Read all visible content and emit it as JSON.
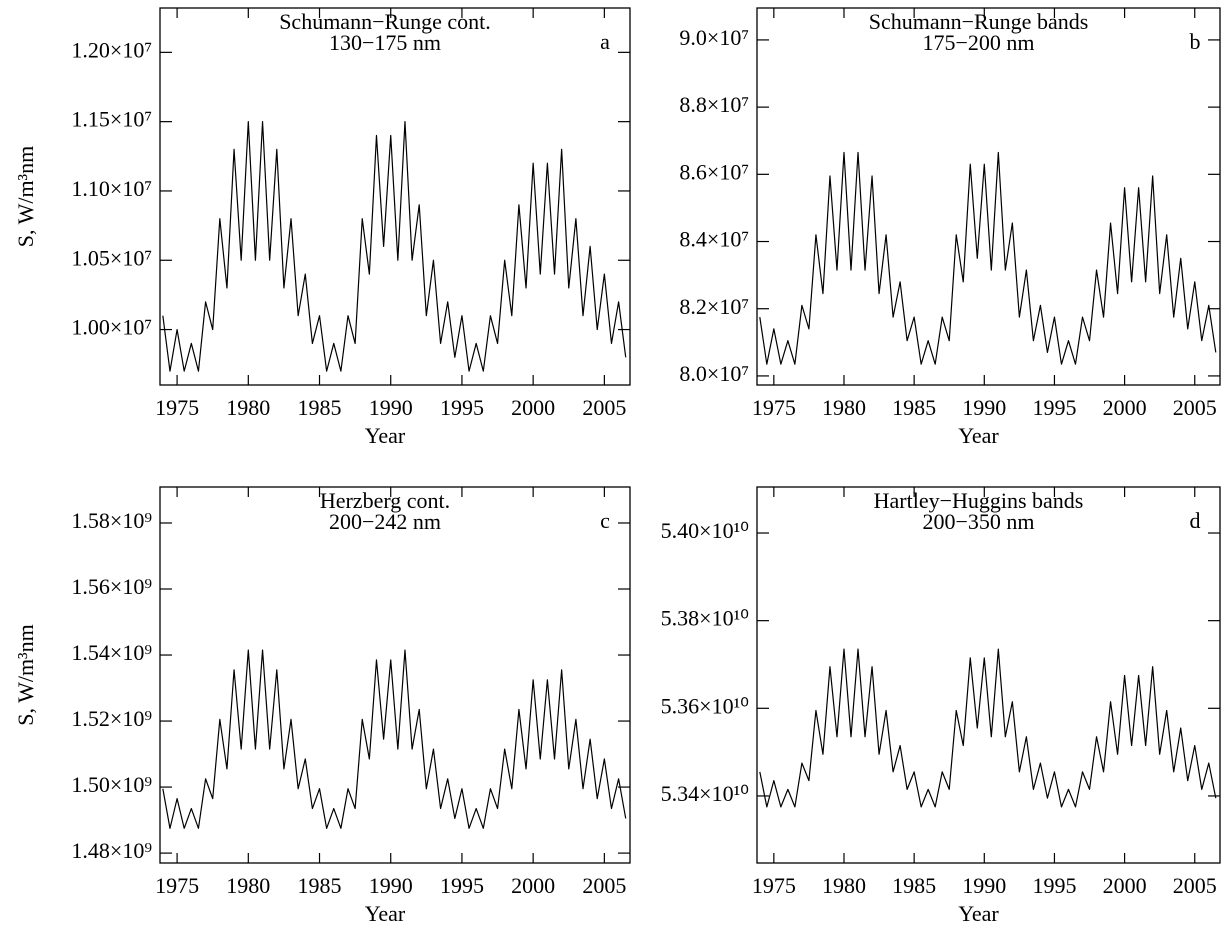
{
  "chart_data": [
    {
      "type": "line",
      "title": "Schumann−Runge cont.",
      "subtitle": "130−175 nm",
      "panel_label": "a",
      "xlabel": "Year",
      "ylabel": "S, W/m³nm",
      "color": "#000000",
      "xlim": [
        1973.8,
        2006.8
      ],
      "xticks": [
        1975,
        1980,
        1985,
        1990,
        1995,
        2000,
        2005
      ],
      "ylim": [
        9600000,
        12320000
      ],
      "yticks": [
        {
          "value": 10000000,
          "label": "1.00×10⁷"
        },
        {
          "value": 10500000,
          "label": "1.05×10⁷"
        },
        {
          "value": 11000000,
          "label": "1.10×10⁷"
        },
        {
          "value": 11500000,
          "label": "1.15×10⁷"
        },
        {
          "value": 12000000,
          "label": "1.20×10⁷"
        }
      ],
      "x": [
        1974,
        1974.5,
        1975,
        1975.5,
        1976,
        1976.5,
        1977,
        1977.5,
        1978,
        1978.5,
        1979,
        1979.5,
        1980,
        1980.5,
        1981,
        1981.5,
        1982,
        1982.5,
        1983,
        1983.5,
        1984,
        1984.5,
        1985,
        1985.5,
        1986,
        1986.5,
        1987,
        1987.5,
        1988,
        1988.5,
        1989,
        1989.5,
        1990,
        1990.5,
        1991,
        1991.5,
        1992,
        1992.5,
        1993,
        1993.5,
        1994,
        1994.5,
        1995,
        1995.5,
        1996,
        1996.5,
        1997,
        1997.5,
        1998,
        1998.5,
        1999,
        1999.5,
        2000,
        2000.5,
        2001,
        2001.5,
        2002,
        2002.5,
        2003,
        2003.5,
        2004,
        2004.5,
        2005,
        2005.5,
        2006,
        2006.5
      ],
      "values": [
        10100000,
        9700000,
        10000000,
        9700000,
        9900000,
        9700000,
        10200000,
        10000000,
        10800000,
        10300000,
        11300000,
        10500000,
        11500000,
        10500000,
        11500000,
        10500000,
        11300000,
        10300000,
        10800000,
        10100000,
        10400000,
        9900000,
        10100000,
        9700000,
        9900000,
        9700000,
        10100000,
        9900000,
        10800000,
        10400000,
        11400000,
        10600000,
        11400000,
        10500000,
        11500000,
        10500000,
        10900000,
        10100000,
        10500000,
        9900000,
        10200000,
        9800000,
        10100000,
        9700000,
        9900000,
        9700000,
        10100000,
        9900000,
        10500000,
        10100000,
        10900000,
        10300000,
        11200000,
        10400000,
        11200000,
        10400000,
        11300000,
        10300000,
        10800000,
        10100000,
        10600000,
        10000000,
        10400000,
        9900000,
        10200000,
        9800000
      ]
    },
    {
      "type": "line",
      "title": "Schumann−Runge bands",
      "subtitle": "175−200 nm",
      "panel_label": "b",
      "xlabel": "Year",
      "color": "#000000",
      "xlim": [
        1973.8,
        2006.8
      ],
      "xticks": [
        1975,
        1980,
        1985,
        1990,
        1995,
        2000,
        2005
      ],
      "ylim": [
        79730000,
        90950000
      ],
      "yticks": [
        {
          "value": 80000000,
          "label": "8.0×10⁷"
        },
        {
          "value": 82000000,
          "label": "8.2×10⁷"
        },
        {
          "value": 84000000,
          "label": "8.4×10⁷"
        },
        {
          "value": 86000000,
          "label": "8.6×10⁷"
        },
        {
          "value": 88000000,
          "label": "8.8×10⁷"
        },
        {
          "value": 90000000,
          "label": "9.0×10⁷"
        }
      ],
      "x": [
        1974,
        1974.5,
        1975,
        1975.5,
        1976,
        1976.5,
        1977,
        1977.5,
        1978,
        1978.5,
        1979,
        1979.5,
        1980,
        1980.5,
        1981,
        1981.5,
        1982,
        1982.5,
        1983,
        1983.5,
        1984,
        1984.5,
        1985,
        1985.5,
        1986,
        1986.5,
        1987,
        1987.5,
        1988,
        1988.5,
        1989,
        1989.5,
        1990,
        1990.5,
        1991,
        1991.5,
        1992,
        1992.5,
        1993,
        1993.5,
        1994,
        1994.5,
        1995,
        1995.5,
        1996,
        1996.5,
        1997,
        1997.5,
        1998,
        1998.5,
        1999,
        1999.5,
        2000,
        2000.5,
        2001,
        2001.5,
        2002,
        2002.5,
        2003,
        2003.5,
        2004,
        2004.5,
        2005,
        2005.5,
        2006,
        2006.5
      ],
      "values": [
        81750000,
        80350000,
        81400000,
        80350000,
        81050000,
        80350000,
        82100000,
        81400000,
        84200000,
        82450000,
        85950000,
        83150000,
        86650000,
        83150000,
        86650000,
        83150000,
        85950000,
        82450000,
        84200000,
        81750000,
        82800000,
        81050000,
        81750000,
        80350000,
        81050000,
        80350000,
        81750000,
        81050000,
        84200000,
        82800000,
        86300000,
        83500000,
        86300000,
        83150000,
        86650000,
        83150000,
        84550000,
        81750000,
        83150000,
        81050000,
        82100000,
        80700000,
        81750000,
        80350000,
        81050000,
        80350000,
        81750000,
        81050000,
        83150000,
        81750000,
        84550000,
        82450000,
        85600000,
        82800000,
        85600000,
        82800000,
        85950000,
        82450000,
        84200000,
        81750000,
        83500000,
        81400000,
        82800000,
        81050000,
        82100000,
        80700000
      ]
    },
    {
      "type": "line",
      "title": "Herzberg cont.",
      "subtitle": "200−242 nm",
      "panel_label": "c",
      "xlabel": "Year",
      "ylabel": "S, W/m³nm",
      "color": "#000000",
      "xlim": [
        1973.8,
        2006.8
      ],
      "xticks": [
        1975,
        1980,
        1985,
        1990,
        1995,
        2000,
        2005
      ],
      "ylim": [
        1477000000,
        1590900000
      ],
      "yticks": [
        {
          "value": 1480000000,
          "label": "1.48×10⁹"
        },
        {
          "value": 1500000000,
          "label": "1.50×10⁹"
        },
        {
          "value": 1520000000,
          "label": "1.52×10⁹"
        },
        {
          "value": 1540000000,
          "label": "1.54×10⁹"
        },
        {
          "value": 1560000000,
          "label": "1.56×10⁹"
        },
        {
          "value": 1580000000,
          "label": "1.58×10⁹"
        }
      ],
      "x": [
        1974,
        1974.5,
        1975,
        1975.5,
        1976,
        1976.5,
        1977,
        1977.5,
        1978,
        1978.5,
        1979,
        1979.5,
        1980,
        1980.5,
        1981,
        1981.5,
        1982,
        1982.5,
        1983,
        1983.5,
        1984,
        1984.5,
        1985,
        1985.5,
        1986,
        1986.5,
        1987,
        1987.5,
        1988,
        1988.5,
        1989,
        1989.5,
        1990,
        1990.5,
        1991,
        1991.5,
        1992,
        1992.5,
        1993,
        1993.5,
        1994,
        1994.5,
        1995,
        1995.5,
        1996,
        1996.5,
        1997,
        1997.5,
        1998,
        1998.5,
        1999,
        1999.5,
        2000,
        2000.5,
        2001,
        2001.5,
        2002,
        2002.5,
        2003,
        2003.5,
        2004,
        2004.5,
        2005,
        2005.5,
        2006,
        2006.5
      ],
      "values": [
        1499500000,
        1487500000,
        1496500000,
        1487500000,
        1493500000,
        1487500000,
        1502500000,
        1496500000,
        1520500000,
        1505500000,
        1535500000,
        1511500000,
        1541500000,
        1511500000,
        1541500000,
        1511500000,
        1535500000,
        1505500000,
        1520500000,
        1499500000,
        1508500000,
        1493500000,
        1499500000,
        1487500000,
        1493500000,
        1487500000,
        1499500000,
        1493500000,
        1520500000,
        1508500000,
        1538500000,
        1514500000,
        1538500000,
        1511500000,
        1541500000,
        1511500000,
        1523500000,
        1499500000,
        1511500000,
        1493500000,
        1502500000,
        1490500000,
        1499500000,
        1487500000,
        1493500000,
        1487500000,
        1499500000,
        1493500000,
        1511500000,
        1499500000,
        1523500000,
        1505500000,
        1532500000,
        1508500000,
        1532500000,
        1508500000,
        1535500000,
        1505500000,
        1520500000,
        1499500000,
        1514500000,
        1496500000,
        1508500000,
        1493500000,
        1502500000,
        1490500000
      ]
    },
    {
      "type": "line",
      "title": "Hartley−Huggins bands",
      "subtitle": "200−350 nm",
      "panel_label": "d",
      "xlabel": "Year",
      "color": "#000000",
      "xlim": [
        1973.8,
        2006.8
      ],
      "xticks": [
        1975,
        1980,
        1985,
        1990,
        1995,
        2000,
        2005
      ],
      "ylim": [
        53247000000,
        54105000000
      ],
      "yticks": [
        {
          "value": 53400000000,
          "label": "5.34×10¹⁰"
        },
        {
          "value": 53600000000,
          "label": "5.36×10¹⁰"
        },
        {
          "value": 53800000000,
          "label": "5.38×10¹⁰"
        },
        {
          "value": 54000000000,
          "label": "5.40×10¹⁰"
        }
      ],
      "x": [
        1974,
        1974.5,
        1975,
        1975.5,
        1976,
        1976.5,
        1977,
        1977.5,
        1978,
        1978.5,
        1979,
        1979.5,
        1980,
        1980.5,
        1981,
        1981.5,
        1982,
        1982.5,
        1983,
        1983.5,
        1984,
        1984.5,
        1985,
        1985.5,
        1986,
        1986.5,
        1987,
        1987.5,
        1988,
        1988.5,
        1989,
        1989.5,
        1990,
        1990.5,
        1991,
        1991.5,
        1992,
        1992.5,
        1993,
        1993.5,
        1994,
        1994.5,
        1995,
        1995.5,
        1996,
        1996.5,
        1997,
        1997.5,
        1998,
        1998.5,
        1999,
        1999.5,
        2000,
        2000.5,
        2001,
        2001.5,
        2002,
        2002.5,
        2003,
        2003.5,
        2004,
        2004.5,
        2005,
        2005.5,
        2006,
        2006.5
      ],
      "values": [
        53455000000,
        53375000000,
        53435000000,
        53375000000,
        53415000000,
        53375000000,
        53475000000,
        53435000000,
        53595000000,
        53495000000,
        53695000000,
        53535000000,
        53735000000,
        53535000000,
        53735000000,
        53535000000,
        53695000000,
        53495000000,
        53595000000,
        53455000000,
        53515000000,
        53415000000,
        53455000000,
        53375000000,
        53415000000,
        53375000000,
        53455000000,
        53415000000,
        53595000000,
        53515000000,
        53715000000,
        53555000000,
        53715000000,
        53535000000,
        53735000000,
        53535000000,
        53615000000,
        53455000000,
        53535000000,
        53415000000,
        53475000000,
        53395000000,
        53455000000,
        53375000000,
        53415000000,
        53375000000,
        53455000000,
        53415000000,
        53535000000,
        53455000000,
        53615000000,
        53495000000,
        53675000000,
        53515000000,
        53675000000,
        53515000000,
        53695000000,
        53495000000,
        53595000000,
        53455000000,
        53555000000,
        53435000000,
        53515000000,
        53415000000,
        53475000000,
        53395000000
      ]
    }
  ]
}
